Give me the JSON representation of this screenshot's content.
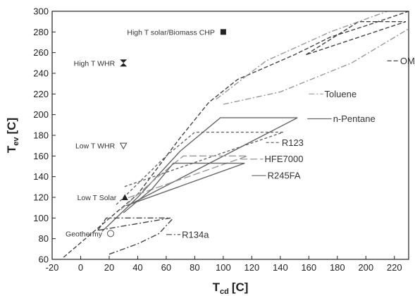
{
  "chart_data": {
    "type": "line",
    "title": "",
    "xlabel": {
      "main": "T",
      "sub": "cd",
      "unit": "[C]"
    },
    "ylabel": {
      "main": "T",
      "sub": "ev",
      "unit": "[C]"
    },
    "xlim": [
      -20,
      230
    ],
    "ylim": [
      60,
      300
    ],
    "xticks": [
      -20,
      0,
      20,
      40,
      60,
      80,
      100,
      120,
      140,
      160,
      180,
      200,
      220
    ],
    "yticks": [
      60,
      80,
      100,
      120,
      140,
      160,
      180,
      200,
      220,
      240,
      260,
      280,
      300
    ],
    "grid": false,
    "legend": "none",
    "series": [
      {
        "id": "omts",
        "name": "OMTS",
        "color": "#444444",
        "dash": "6,3",
        "curves": [
          [
            [
              -12,
              62
            ],
            [
              40,
              123
            ],
            [
              70,
              178
            ],
            [
              90,
              212
            ],
            [
              110,
              234
            ],
            [
              150,
              258
            ],
            [
              175,
              275
            ],
            [
              200,
              286
            ],
            [
              230,
              300
            ]
          ],
          [
            [
              158,
              258
            ],
            [
              195,
              290
            ],
            [
              228,
              290
            ],
            [
              158,
              258
            ]
          ]
        ],
        "label": {
          "text": "OMTS",
          "x": 215,
          "y": 252,
          "lx": 223,
          "ly": 252
        }
      },
      {
        "id": "toluene",
        "name": "Toluene",
        "color": "#999999",
        "dash": "8,3,2,3",
        "curves": [
          [
            [
              95,
              215
            ],
            [
              130,
              252
            ],
            [
              175,
              280
            ],
            [
              215,
              300
            ]
          ],
          [
            [
              100,
              210
            ],
            [
              140,
              222
            ],
            [
              190,
              250
            ],
            [
              230,
              283
            ]
          ]
        ],
        "label": {
          "text": "Toluene",
          "x": 160,
          "y": 220,
          "lx": 170,
          "ly": 220
        }
      },
      {
        "id": "npentane",
        "name": "n-Pentane",
        "color": "#666666",
        "dash": "",
        "curves": [
          [
            [
              15,
              87
            ],
            [
              40,
              120
            ],
            [
              70,
              165
            ],
            [
              98,
              197
            ],
            [
              152,
              197
            ],
            [
              33,
              112
            ]
          ]
        ],
        "label": {
          "text": "n-Pentane",
          "x": 159,
          "y": 196,
          "lx": 176,
          "ly": 196
        }
      },
      {
        "id": "r123",
        "name": "R123",
        "color": "#666666",
        "dash": "4,3",
        "curves": [
          [
            [
              25,
              113
            ],
            [
              60,
              160
            ],
            [
              80,
              183
            ],
            [
              142,
              183
            ],
            [
              30,
              130
            ]
          ]
        ],
        "label": {
          "text": "R123",
          "x": 130,
          "y": 173,
          "lx": 140,
          "ly": 173
        }
      },
      {
        "id": "hfe7000",
        "name": "HFE7000",
        "color": "#999999",
        "dash": "10,4",
        "curves": [
          [
            [
              28,
              108
            ],
            [
              50,
              135
            ],
            [
              72,
              160
            ],
            [
              117,
              160
            ],
            [
              30,
              118
            ]
          ]
        ],
        "label": {
          "text": "HFE7000",
          "x": 112,
          "y": 157,
          "lx": 128,
          "ly": 157
        }
      },
      {
        "id": "r245fa",
        "name": "R245FA",
        "color": "#666666",
        "dash": "",
        "curves": [
          [
            [
              30,
              105
            ],
            [
              50,
              128
            ],
            [
              65,
              153
            ],
            [
              115,
              153
            ],
            [
              32,
              112
            ]
          ]
        ],
        "label": {
          "text": "R245FA",
          "x": 120,
          "y": 141,
          "lx": 130,
          "ly": 141
        }
      },
      {
        "id": "r134a",
        "name": "R134a",
        "color": "#444444",
        "dash": "8,3,2,3",
        "curves": [
          [
            [
              20,
              65
            ],
            [
              40,
              75
            ],
            [
              55,
              85
            ],
            [
              65,
              100
            ]
          ],
          [
            [
              12,
              88
            ],
            [
              18,
              100
            ],
            [
              63,
              100
            ],
            [
              12,
              88
            ]
          ]
        ],
        "label": {
          "text": "R134a",
          "x": 60,
          "y": 84,
          "lx": 70,
          "ly": 84
        }
      }
    ],
    "applications": [
      {
        "text": "High T solar/Biomass CHP",
        "x": 100,
        "y": 280,
        "marker": "square"
      },
      {
        "text": "High T WHR",
        "x": 30,
        "y": 250,
        "marker": "bowtie"
      },
      {
        "text": "Low T WHR",
        "x": 30,
        "y": 170,
        "marker": "triangle-down-open"
      },
      {
        "text": "Low T Solar",
        "x": 31,
        "y": 120,
        "marker": "triangle-up"
      },
      {
        "text": "Geothermy",
        "x": 21,
        "y": 85,
        "marker": "circle-open"
      }
    ]
  }
}
